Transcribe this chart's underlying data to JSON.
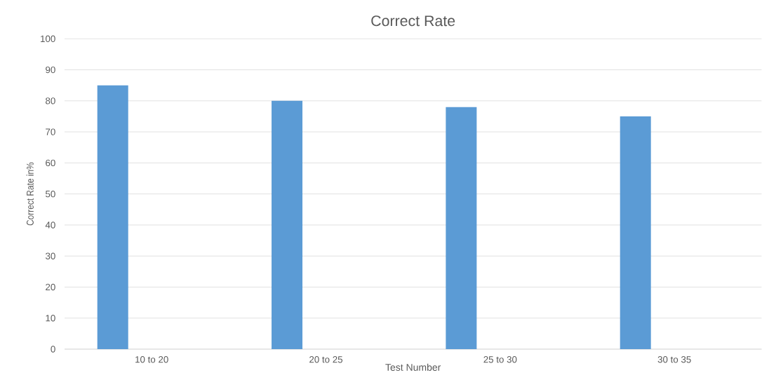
{
  "chart_data": {
    "type": "bar",
    "title": "Correct Rate",
    "xlabel": "Test Number",
    "ylabel": "Correct Rate in%",
    "categories": [
      "10 to 20",
      "20 to 25",
      "25 to 30",
      "30 to 35"
    ],
    "values": [
      85,
      80,
      78,
      75
    ],
    "color": "#5b9bd5",
    "ylim": [
      0,
      100
    ],
    "yticks": [
      0,
      10,
      20,
      30,
      40,
      50,
      60,
      70,
      80,
      90,
      100
    ],
    "grid": "y"
  }
}
